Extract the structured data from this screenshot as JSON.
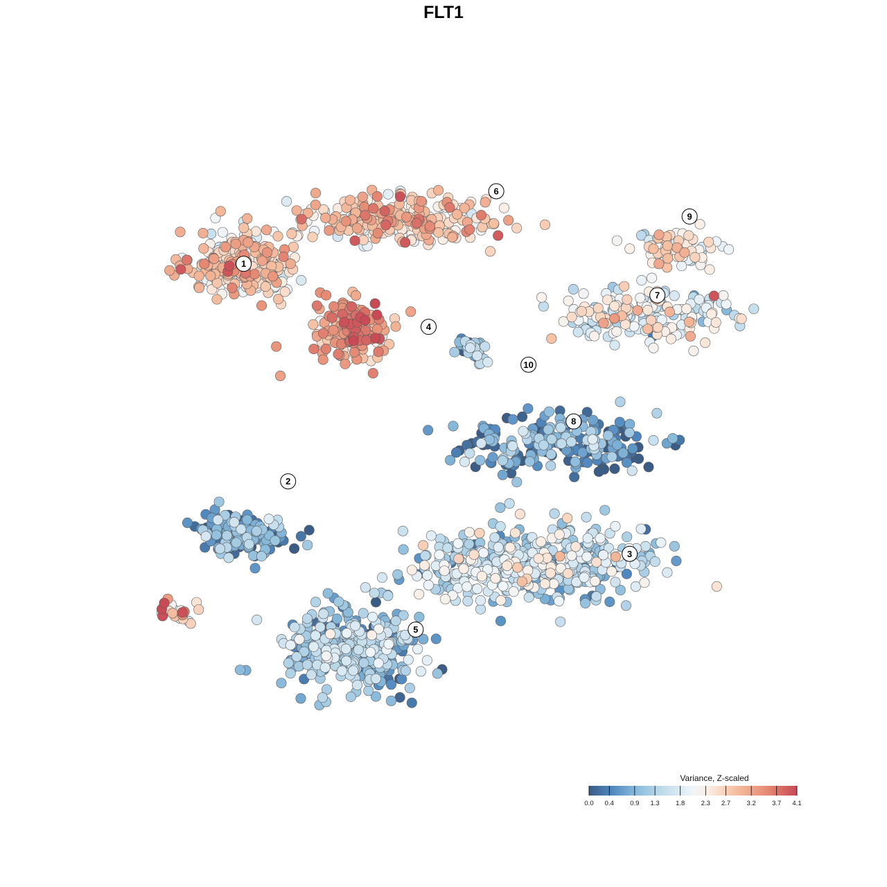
{
  "chart_data": {
    "type": "scatter",
    "title": "FLT1",
    "legend": {
      "title": "Variance, Z-scaled",
      "position": "bottom-right",
      "tick_labels": [
        "0.0",
        "0.4",
        "0.9",
        "1.3",
        "1.8",
        "2.3",
        "2.7",
        "3.2",
        "3.7",
        "4.1"
      ],
      "tick_values": [
        0.0,
        0.4,
        0.9,
        1.3,
        1.8,
        2.3,
        2.7,
        3.2,
        3.7,
        4.1
      ],
      "range": [
        0.0,
        4.1
      ]
    },
    "color_scale": {
      "stops": [
        {
          "value": 0.0,
          "color": "#3b5c85"
        },
        {
          "value": 0.45,
          "color": "#4f88bf"
        },
        {
          "value": 0.9,
          "color": "#86b8da"
        },
        {
          "value": 1.4,
          "color": "#bcd9ea"
        },
        {
          "value": 2.05,
          "color": "#eff5f9"
        },
        {
          "value": 2.35,
          "color": "#fbeee4"
        },
        {
          "value": 2.9,
          "color": "#f5bea0"
        },
        {
          "value": 3.45,
          "color": "#e89078"
        },
        {
          "value": 4.1,
          "color": "#c84a55"
        }
      ]
    },
    "xlim": [
      0,
      100
    ],
    "ylim": [
      0,
      100
    ],
    "grid": false,
    "axes_visible": false,
    "clusters": [
      {
        "label": "1",
        "x": 16.3,
        "y": 78.5,
        "spread_x": 7.4,
        "spread_y": 4.7,
        "mean": 2.55,
        "sd": 0.55,
        "count": 300
      },
      {
        "label": "2",
        "x": 16.5,
        "y": 35.5,
        "spread_x": 6.0,
        "spread_y": 3.3,
        "mean": 0.6,
        "sd": 0.5,
        "count": 170
      },
      {
        "label": "3",
        "x": 60.5,
        "y": 31.0,
        "spread_x": 16.0,
        "spread_y": 5.5,
        "mean": 1.45,
        "sd": 0.55,
        "count": 480
      },
      {
        "label": "4",
        "x": 33.2,
        "y": 67.5,
        "spread_x": 5.2,
        "spread_y": 4.4,
        "mean": 3.3,
        "sd": 0.45,
        "count": 180
      },
      {
        "label": "5",
        "x": 32.5,
        "y": 17.5,
        "spread_x": 9.5,
        "spread_y": 6.2,
        "mean": 1.0,
        "sd": 0.55,
        "count": 380
      },
      {
        "label": "6",
        "x": 40.5,
        "y": 85.5,
        "spread_x": 13.0,
        "spread_y": 3.5,
        "mean": 2.65,
        "sd": 0.5,
        "count": 300
      },
      {
        "label": "7",
        "x": 78.5,
        "y": 70.5,
        "spread_x": 13.5,
        "spread_y": 3.8,
        "mean": 1.95,
        "sd": 0.55,
        "count": 180
      },
      {
        "label": "8",
        "x": 65.0,
        "y": 50.0,
        "spread_x": 14.0,
        "spread_y": 4.0,
        "mean": 0.55,
        "sd": 0.55,
        "count": 210
      },
      {
        "label": "9",
        "x": 83.5,
        "y": 81.0,
        "spread_x": 6.0,
        "spread_y": 2.6,
        "mean": 2.2,
        "sd": 0.5,
        "count": 80
      },
      {
        "label": "10",
        "x": 52.0,
        "y": 65.0,
        "spread_x": 2.2,
        "spread_y": 2.0,
        "mean": 1.1,
        "sd": 0.45,
        "count": 30
      },
      {
        "label": "",
        "x": 6.0,
        "y": 23.5,
        "spread_x": 3.0,
        "spread_y": 1.8,
        "mean": 2.4,
        "sd": 0.9,
        "count": 24
      }
    ],
    "cluster_labels": [
      {
        "text": "1",
        "x": 16.3,
        "y": 78.5
      },
      {
        "text": "2",
        "x": 23.2,
        "y": 44.0
      },
      {
        "text": "3",
        "x": 76.2,
        "y": 32.5
      },
      {
        "text": "4",
        "x": 45.0,
        "y": 68.5
      },
      {
        "text": "5",
        "x": 43.0,
        "y": 20.5
      },
      {
        "text": "6",
        "x": 55.5,
        "y": 90.0
      },
      {
        "text": "7",
        "x": 80.5,
        "y": 73.5
      },
      {
        "text": "8",
        "x": 67.5,
        "y": 53.5
      },
      {
        "text": "9",
        "x": 85.5,
        "y": 86.0
      },
      {
        "text": "10",
        "x": 60.5,
        "y": 62.5
      }
    ]
  }
}
